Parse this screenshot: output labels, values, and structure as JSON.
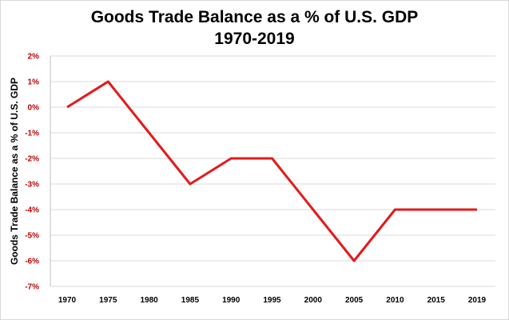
{
  "chart_data": {
    "type": "line",
    "title": [
      "Goods Trade Balance as a % of U.S. GDP",
      "1970-2019"
    ],
    "xlabel": "",
    "ylabel": "Goods Trade Balance as a % of U.S. GDP",
    "categories": [
      "1970",
      "1975",
      "1980",
      "1985",
      "1990",
      "1995",
      "2000",
      "2005",
      "2010",
      "2015",
      "2019"
    ],
    "x": [
      1970,
      1975,
      1980,
      1985,
      1990,
      1995,
      2000,
      2005,
      2010,
      2015,
      2019
    ],
    "series": [
      {
        "name": "Goods Trade Balance",
        "values": [
          0,
          1,
          -1,
          -3,
          -2,
          -2,
          -4,
          -6,
          -4,
          -4,
          -4
        ],
        "color": "#e31a1c"
      }
    ],
    "yticks": [
      "2%",
      "1%",
      "0%",
      "-1%",
      "-2%",
      "-3%",
      "-4%",
      "-5%",
      "-6%",
      "-7%"
    ],
    "ytick_values": [
      2,
      1,
      0,
      -1,
      -2,
      -3,
      -4,
      -5,
      -6,
      -7
    ],
    "ylim": [
      -7,
      2
    ],
    "grid": true,
    "legend": "none",
    "colors": {
      "line": "#e31a1c",
      "ytick": "#c00000",
      "grid": "#d9d9d9"
    }
  }
}
